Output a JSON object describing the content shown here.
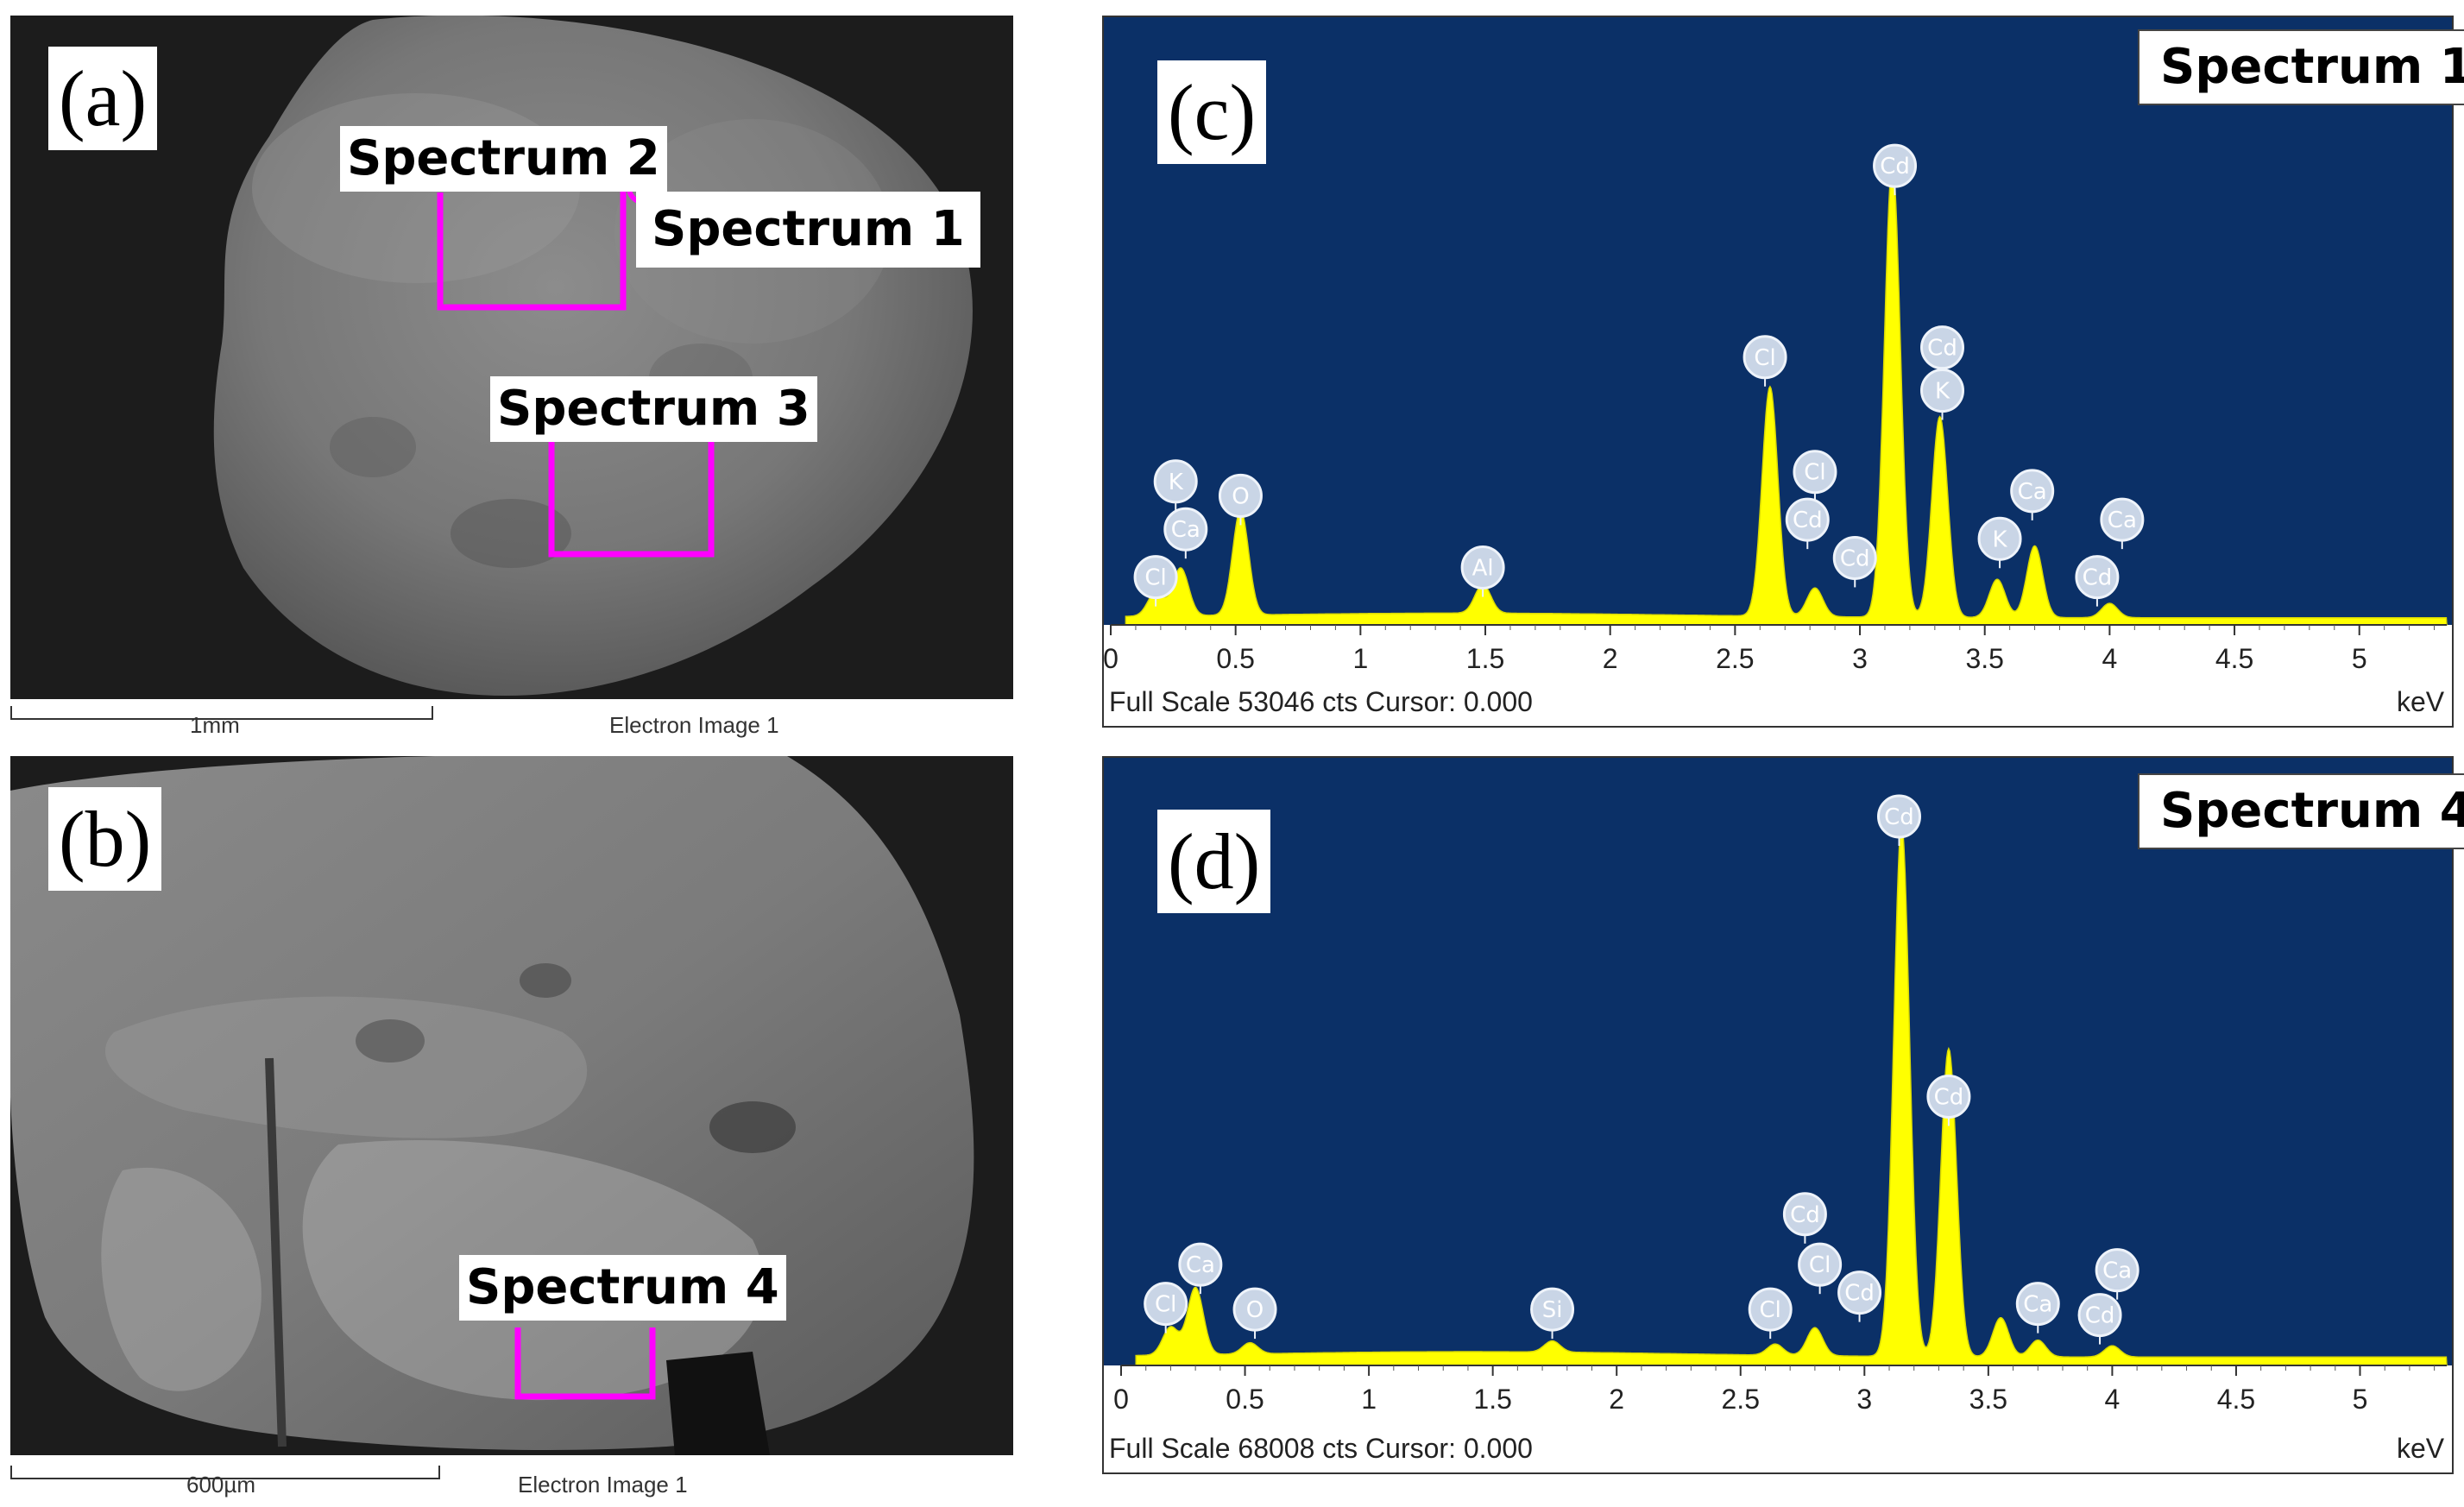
{
  "colors": {
    "spectrum_bg": "#0b3067",
    "spectrum_fill": "#ffff00",
    "region": "#ff00ff"
  },
  "panels": {
    "a": {
      "letter": "(a)",
      "callouts": [
        "Spectrum 2",
        "Spectrum 1",
        "Spectrum 3"
      ],
      "scale_label": "1mm",
      "caption": "Electron Image 1"
    },
    "b": {
      "letter": "(b)",
      "callouts": [
        "Spectrum 4"
      ],
      "scale_label": "600µm",
      "caption": "Electron Image 1"
    },
    "c": {
      "letter": "(c)",
      "title": "Spectrum 1",
      "footer": "Full Scale 53046 cts Cursor: 0.000",
      "unit": "keV"
    },
    "d": {
      "letter": "(d)",
      "title": "Spectrum 4",
      "footer": "Full Scale 68008 cts Cursor: 0.000",
      "unit": "keV"
    }
  },
  "chart_data": [
    {
      "type": "area",
      "title": "Spectrum 1",
      "xlabel": "keV",
      "xlim": [
        0,
        5.35
      ],
      "x_ticks": [
        0,
        0.5,
        1,
        1.5,
        2,
        2.5,
        3,
        3.5,
        4,
        4.5,
        5
      ],
      "x_tick_labels": [
        "0",
        "0.5",
        "1",
        "1.5",
        "2",
        "2.5",
        "3",
        "3.5",
        "4",
        "4.5",
        "5"
      ],
      "full_scale_cts": 53046,
      "peaks": [
        {
          "energy": 0.18,
          "height": 0.05
        },
        {
          "energy": 0.28,
          "height": 0.1
        },
        {
          "energy": 0.52,
          "height": 0.22
        },
        {
          "energy": 1.49,
          "height": 0.06
        },
        {
          "energy": 2.64,
          "height": 0.48
        },
        {
          "energy": 2.82,
          "height": 0.06
        },
        {
          "energy": 3.13,
          "height": 0.95
        },
        {
          "energy": 3.32,
          "height": 0.42
        },
        {
          "energy": 3.55,
          "height": 0.08
        },
        {
          "energy": 3.7,
          "height": 0.15
        },
        {
          "energy": 4.0,
          "height": 0.03
        }
      ],
      "annotations": [
        {
          "label": "Cl",
          "energy": 0.18,
          "level": 0.1
        },
        {
          "label": "Ca",
          "energy": 0.3,
          "level": 0.2
        },
        {
          "label": "K",
          "energy": 0.26,
          "level": 0.3
        },
        {
          "label": "O",
          "energy": 0.52,
          "level": 0.27
        },
        {
          "label": "Al",
          "energy": 1.49,
          "level": 0.12
        },
        {
          "label": "Cl",
          "energy": 2.62,
          "level": 0.56
        },
        {
          "label": "Cl",
          "energy": 2.82,
          "level": 0.32
        },
        {
          "label": "Cd",
          "energy": 2.79,
          "level": 0.22
        },
        {
          "label": "Cd",
          "energy": 2.98,
          "level": 0.14
        },
        {
          "label": "Cd",
          "energy": 3.14,
          "level": 0.96
        },
        {
          "label": "Cd",
          "energy": 3.33,
          "level": 0.58
        },
        {
          "label": "K",
          "energy": 3.33,
          "level": 0.49
        },
        {
          "label": "K",
          "energy": 3.56,
          "level": 0.18
        },
        {
          "label": "Ca",
          "energy": 3.69,
          "level": 0.28
        },
        {
          "label": "Ca",
          "energy": 4.05,
          "level": 0.22
        },
        {
          "label": "Cd",
          "energy": 3.95,
          "level": 0.1
        }
      ]
    },
    {
      "type": "area",
      "title": "Spectrum 4",
      "xlabel": "keV",
      "xlim": [
        0,
        5.35
      ],
      "x_ticks": [
        0,
        0.5,
        1,
        1.5,
        2,
        2.5,
        3,
        3.5,
        4,
        4.5,
        5
      ],
      "x_tick_labels": [
        "0",
        "0.5",
        "1",
        "1.5",
        "2",
        "2.5",
        "3",
        "3.5",
        "4",
        "4.5",
        "5"
      ],
      "full_scale_cts": 68008,
      "peaks": [
        {
          "energy": 0.2,
          "height": 0.05
        },
        {
          "energy": 0.3,
          "height": 0.12
        },
        {
          "energy": 0.52,
          "height": 0.02
        },
        {
          "energy": 1.74,
          "height": 0.02
        },
        {
          "energy": 2.64,
          "height": 0.02
        },
        {
          "energy": 2.8,
          "height": 0.05
        },
        {
          "energy": 3.15,
          "height": 0.95
        },
        {
          "energy": 3.34,
          "height": 0.55
        },
        {
          "energy": 3.55,
          "height": 0.07
        },
        {
          "energy": 3.7,
          "height": 0.03
        },
        {
          "energy": 4.0,
          "height": 0.02
        }
      ],
      "annotations": [
        {
          "label": "Cl",
          "energy": 0.18,
          "level": 0.11
        },
        {
          "label": "Ca",
          "energy": 0.32,
          "level": 0.18
        },
        {
          "label": "O",
          "energy": 0.54,
          "level": 0.1
        },
        {
          "label": "Si",
          "energy": 1.74,
          "level": 0.1
        },
        {
          "label": "Cl",
          "energy": 2.62,
          "level": 0.1
        },
        {
          "label": "Cd",
          "energy": 2.76,
          "level": 0.27
        },
        {
          "label": "Cl",
          "energy": 2.82,
          "level": 0.18
        },
        {
          "label": "Cd",
          "energy": 2.98,
          "level": 0.13
        },
        {
          "label": "Cd",
          "energy": 3.14,
          "level": 0.98
        },
        {
          "label": "Cd",
          "energy": 3.34,
          "level": 0.48
        },
        {
          "label": "Ca",
          "energy": 3.7,
          "level": 0.11
        },
        {
          "label": "Ca",
          "energy": 4.02,
          "level": 0.17
        },
        {
          "label": "Cd",
          "energy": 3.95,
          "level": 0.09
        }
      ]
    }
  ]
}
